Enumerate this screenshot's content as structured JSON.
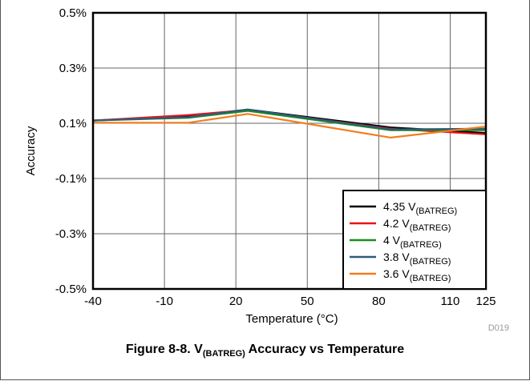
{
  "chart_data": {
    "type": "line",
    "xlabel": "Temperature (°C)",
    "ylabel": "Accuracy",
    "xlim": [
      -40,
      125
    ],
    "ylim": [
      -0.5,
      0.5
    ],
    "x_ticks": [
      "-40",
      "-10",
      "20",
      "50",
      "80",
      "110",
      "125"
    ],
    "x_tick_values": [
      -40,
      -10,
      20,
      50,
      80,
      110,
      125
    ],
    "y_ticks": [
      "0.5%",
      "0.3%",
      "0.1%",
      "-0.1%",
      "-0.3%",
      "-0.5%"
    ],
    "y_tick_values": [
      0.5,
      0.3,
      0.1,
      -0.1,
      -0.3,
      -0.5
    ],
    "grid": true,
    "legend_position": "bottom-right",
    "series": [
      {
        "name": "4.35 V",
        "name_sub": "(BATREG)",
        "color": "#000000",
        "x": [
          -40,
          0,
          25,
          85,
          125
        ],
        "y": [
          0.11,
          0.125,
          0.15,
          0.085,
          0.065
        ]
      },
      {
        "name": "4.2 V",
        "name_sub": "(BATREG)",
        "color": "#e8141c",
        "x": [
          -40,
          0,
          25,
          85,
          125
        ],
        "y": [
          0.11,
          0.13,
          0.148,
          0.08,
          0.06
        ]
      },
      {
        "name": "4 V",
        "name_sub": "(BATREG)",
        "color": "#1a8c1a",
        "x": [
          -40,
          0,
          25,
          85,
          125
        ],
        "y": [
          0.11,
          0.12,
          0.145,
          0.075,
          0.075
        ]
      },
      {
        "name": "3.8 V",
        "name_sub": "(BATREG)",
        "color": "#2e5c7a",
        "x": [
          -40,
          0,
          25,
          85,
          125
        ],
        "y": [
          0.11,
          0.122,
          0.15,
          0.078,
          0.08
        ]
      },
      {
        "name": "3.6 V",
        "name_sub": "(BATREG)",
        "color": "#f57c1f",
        "x": [
          -40,
          0,
          25,
          85,
          125
        ],
        "y": [
          0.102,
          0.102,
          0.134,
          0.048,
          0.088
        ]
      }
    ]
  },
  "figure_code": "D019",
  "caption": {
    "prefix": "Figure 8-8. V",
    "sub": "(BATREG)",
    "suffix": " Accuracy vs Temperature"
  }
}
